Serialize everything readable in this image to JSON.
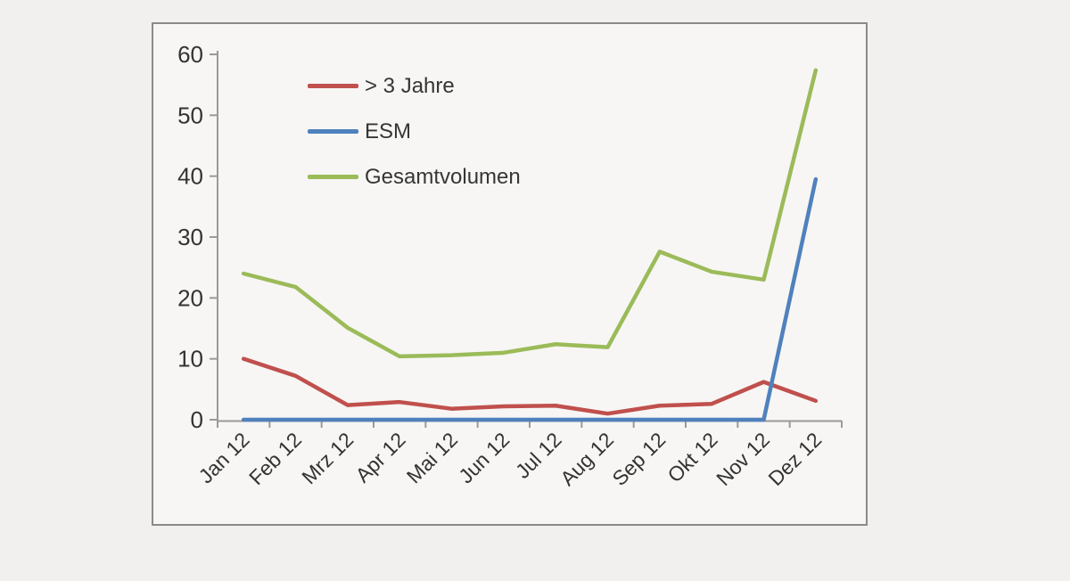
{
  "chart_data": {
    "type": "line",
    "title": "",
    "xlabel": "",
    "ylabel": "",
    "categories": [
      "Jan 12",
      "Feb 12",
      "Mrz 12",
      "Apr 12",
      "Mai 12",
      "Jun 12",
      "Jul 12",
      "Aug 12",
      "Sep 12",
      "Okt 12",
      "Nov 12",
      "Dez 12"
    ],
    "series": [
      {
        "name": "> 3 Jahre",
        "color": "#C0504D",
        "values": [
          10,
          7.2,
          2.4,
          2.9,
          1.8,
          2.2,
          2.3,
          1.0,
          2.3,
          2.6,
          6.2,
          3.1
        ]
      },
      {
        "name": "ESM",
        "color": "#4F81BD",
        "values": [
          0,
          0,
          0,
          0,
          0,
          0,
          0,
          0,
          0,
          0,
          0,
          39.5
        ]
      },
      {
        "name": "Gesamtvolumen",
        "color": "#9BBB59",
        "values": [
          24,
          21.8,
          15.1,
          10.4,
          10.6,
          11.0,
          12.4,
          11.9,
          27.6,
          24.3,
          23,
          57.4
        ]
      }
    ],
    "ylim": [
      0,
      60
    ],
    "yticks": [
      0,
      10,
      20,
      30,
      40,
      50,
      60
    ],
    "grid": false,
    "legend_position": "inside-top-left",
    "x_tick_label_rotation": -45
  },
  "style": {
    "axis_color": "#9a9a9a",
    "tick_label_color": "#333333",
    "chart_bg": "#f7f6f4",
    "page_bg": "#f1f0ee",
    "border_color": "#8a8a8a"
  }
}
